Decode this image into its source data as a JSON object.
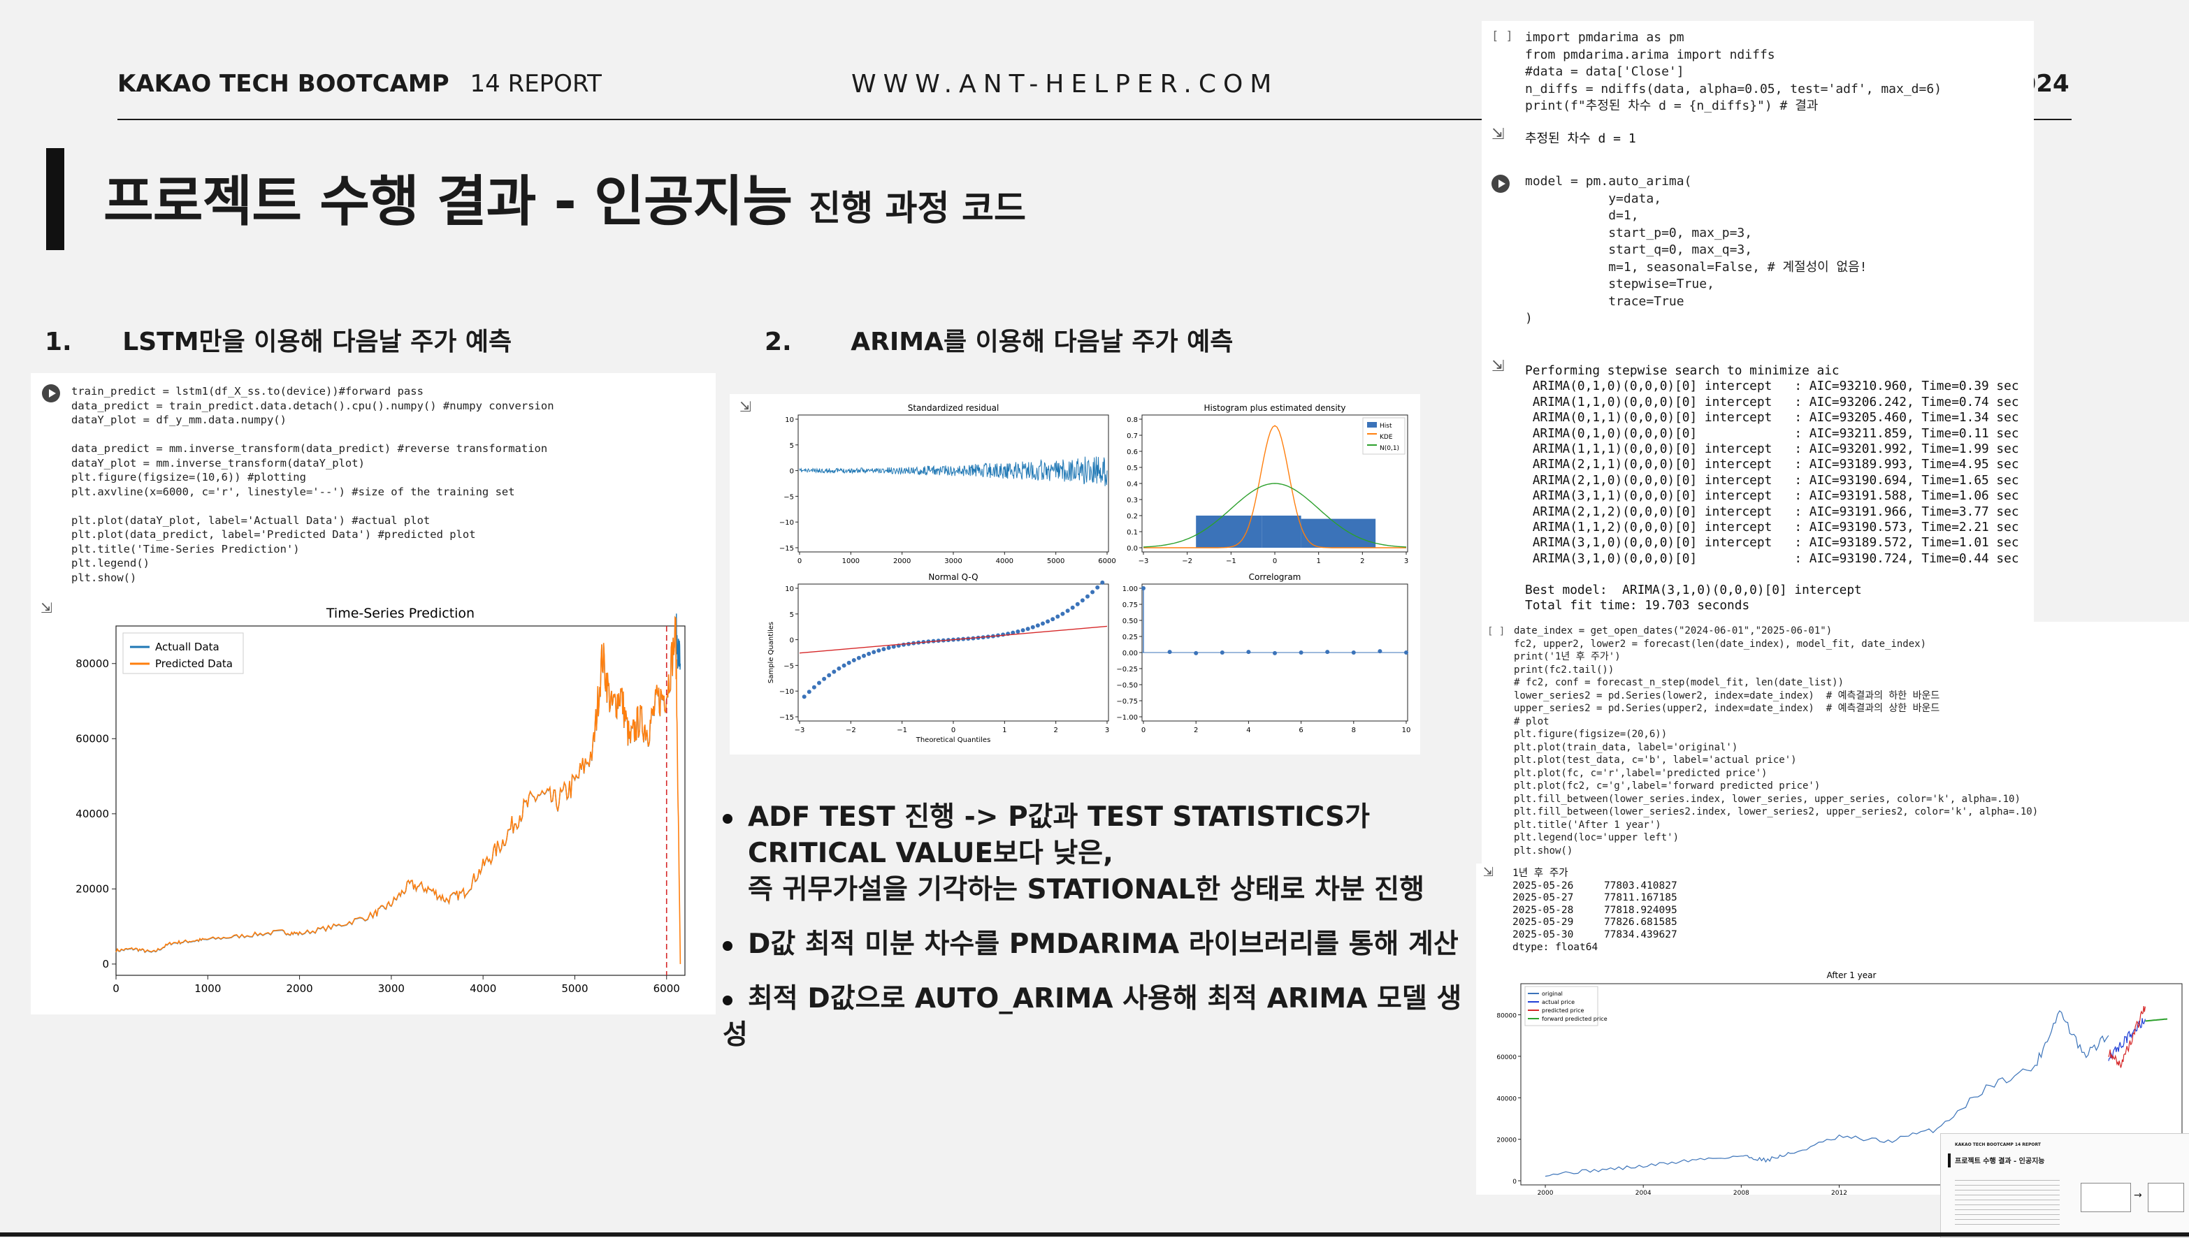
{
  "header": {
    "org": "KAKAO TECH BOOTCAMP",
    "report": "14 REPORT",
    "site": "WWW.ANT-HELPER.COM",
    "year": "2024"
  },
  "title": {
    "main": "프로젝트 수행 결과 - 인공지능",
    "sub": "진행 과정 코드"
  },
  "section1": {
    "num": "1.",
    "label": "LSTM만을 이용해 다음날 주가 예측"
  },
  "section2": {
    "num": "2.",
    "label": "ARIMA를 이용해 다음날 주가 예측"
  },
  "lstm_code": [
    "train_predict = lstm1(df_X_ss.to(device))#forward pass",
    "data_predict = train_predict.data.detach().cpu().numpy() #numpy conversion",
    "dataY_plot = df_y_mm.data.numpy()",
    "",
    "data_predict = mm.inverse_transform(data_predict) #reverse transformation",
    "dataY_plot = mm.inverse_transform(dataY_plot)",
    "plt.figure(figsize=(10,6)) #plotting",
    "plt.axvline(x=6000, c='r', linestyle='--') #size of the training set",
    "",
    "plt.plot(dataY_plot, label='Actuall Data') #actual plot",
    "plt.plot(data_predict, label='Predicted Data') #predicted plot",
    "plt.title('Time-Series Prediction')",
    "plt.legend()",
    "plt.show()"
  ],
  "lstm_chart": {
    "title": "Time-Series Prediction",
    "legend": [
      "Actuall Data",
      "Predicted Data"
    ],
    "yticks": [
      "0",
      "20000",
      "40000",
      "60000",
      "80000"
    ],
    "xticks": [
      "0",
      "1000",
      "2000",
      "3000",
      "4000",
      "5000",
      "6000"
    ],
    "colors": {
      "actual": "#1f77b4",
      "predicted": "#ff7f0e",
      "vline": "#d62728"
    }
  },
  "diag": {
    "p1_title": "Standardized residual",
    "p1_yticks": [
      "10",
      "5",
      "0",
      "−5",
      "−10",
      "−15"
    ],
    "p1_xticks": [
      "0",
      "1000",
      "2000",
      "3000",
      "4000",
      "5000",
      "6000"
    ],
    "p2_title": "Histogram plus estimated density",
    "p2_yticks": [
      "0.8",
      "0.7",
      "0.6",
      "0.5",
      "0.4",
      "0.3",
      "0.2",
      "0.1",
      "0.0"
    ],
    "p2_xticks": [
      "−3",
      "−2",
      "−1",
      "0",
      "1",
      "2",
      "3"
    ],
    "p2_legend": [
      "Hist",
      "KDE",
      "N(0,1)"
    ],
    "p3_title": "Normal Q-Q",
    "p3_ylabel": "Sample Quantiles",
    "p3_xlabel": "Theoretical Quantiles",
    "p3_yticks": [
      "10",
      "5",
      "0",
      "−5",
      "−10",
      "−15"
    ],
    "p3_xticks": [
      "−3",
      "−2",
      "−1",
      "0",
      "1",
      "2",
      "3"
    ],
    "p4_title": "Correlogram",
    "p4_yticks": [
      "1.00",
      "0.75",
      "0.50",
      "0.25",
      "0.00",
      "−0.25",
      "−0.50",
      "−0.75",
      "−1.00"
    ],
    "p4_xticks": [
      "0",
      "2",
      "4",
      "6",
      "8",
      "10"
    ]
  },
  "bullets": [
    [
      "ADF TEST 진행 -> P값과 TEST STATISTICS가",
      "CRITICAL VALUE보다 낮은,",
      "즉 귀무가설을 기각하는 STATIONAL한 상태로 차분 진행"
    ],
    [
      "D값 최적 미분 차수를 PMDARIMA 라이브러리를 통해 계산"
    ],
    [
      "최적 D값으로 AUTO_ARIMA 사용해 최적 ARIMA 모델 생성"
    ]
  ],
  "pm_code": [
    "import pmdarima as pm",
    "from pmdarima.arima import ndiffs",
    "#data = data['Close']",
    "n_diffs = ndiffs(data, alpha=0.05, test='adf', max_d=6)",
    "print(f\"추정된 차수 d = {n_diffs}\") # 결과"
  ],
  "pm_bracket": "[ ]",
  "pm_output": "추정된 차수 d = 1",
  "auto_code": [
    "model = pm.auto_arima(",
    "           y=data,",
    "           d=1,",
    "           start_p=0, max_p=3,",
    "           start_q=0, max_q=3,",
    "           m=1, seasonal=False, # 계절성이 없음!",
    "           stepwise=True,",
    "           trace=True",
    ")"
  ],
  "auto_output": [
    "Performing stepwise search to minimize aic",
    " ARIMA(0,1,0)(0,0,0)[0] intercept   : AIC=93210.960, Time=0.39 sec",
    " ARIMA(1,1,0)(0,0,0)[0] intercept   : AIC=93206.242, Time=0.74 sec",
    " ARIMA(0,1,1)(0,0,0)[0] intercept   : AIC=93205.460, Time=1.34 sec",
    " ARIMA(0,1,0)(0,0,0)[0]             : AIC=93211.859, Time=0.11 sec",
    " ARIMA(1,1,1)(0,0,0)[0] intercept   : AIC=93201.992, Time=1.99 sec",
    " ARIMA(2,1,1)(0,0,0)[0] intercept   : AIC=93189.993, Time=4.95 sec",
    " ARIMA(2,1,0)(0,0,0)[0] intercept   : AIC=93190.694, Time=1.65 sec",
    " ARIMA(3,1,1)(0,0,0)[0] intercept   : AIC=93191.588, Time=1.06 sec",
    " ARIMA(2,1,2)(0,0,0)[0] intercept   : AIC=93191.966, Time=3.77 sec",
    " ARIMA(1,1,2)(0,0,0)[0] intercept   : AIC=93190.573, Time=2.21 sec",
    " ARIMA(3,1,0)(0,0,0)[0] intercept   : AIC=93189.572, Time=1.01 sec",
    " ARIMA(3,1,0)(0,0,0)[0]             : AIC=93190.724, Time=0.44 sec",
    "",
    "Best model:  ARIMA(3,1,0)(0,0,0)[0] intercept",
    "Total fit time: 19.703 seconds"
  ],
  "forecast_code": [
    "date_index = get_open_dates(\"2024-06-01\",\"2025-06-01\")",
    "fc2, upper2, lower2 = forecast(len(date_index), model_fit, date_index)",
    "print('1년 후 주가')",
    "print(fc2.tail())",
    "# fc2, conf = forecast_n_step(model_fit, len(date_list))",
    "lower_series2 = pd.Series(lower2, index=date_index)  # 예측결과의 하한 바운드",
    "upper_series2 = pd.Series(upper2, index=date_index)  # 예측결과의 상한 바운드",
    "# plot",
    "plt.figure(figsize=(20,6))",
    "plt.plot(train_data, label='original')",
    "plt.plot(test_data, c='b', label='actual price')",
    "plt.plot(fc, c='r',label='predicted price')",
    "plt.plot(fc2, c='g',label='forward predicted price')",
    "plt.fill_between(lower_series.index, lower_series, upper_series, color='k', alpha=.10)",
    "plt.fill_between(lower_series2.index, lower_series2, upper_series2, color='k', alpha=.10)",
    "plt.title('After 1 year')",
    "plt.legend(loc='upper left')",
    "plt.show()"
  ],
  "forecast_output": [
    "1년 후 주가",
    "2025-05-26     77803.410827",
    "2025-05-27     77811.167185",
    "2025-05-28     77818.924095",
    "2025-05-29     77826.681585",
    "2025-05-30     77834.439627",
    "dtype: float64"
  ],
  "after_chart": {
    "title": "After 1 year",
    "legend": [
      "original",
      "actual price",
      "predicted price",
      "forward predicted price"
    ],
    "yticks": [
      "0",
      "20000",
      "40000",
      "60000",
      "80000"
    ],
    "xticks": [
      "2000",
      "2004",
      "2008",
      "2012"
    ]
  },
  "thumb": {
    "title": "프로젝트 수행 결과 - 인공지능",
    "header": "KAKAO TECH BOOTCAMP 14 REPORT"
  },
  "chart_data": [
    {
      "type": "line",
      "title": "Time-Series Prediction",
      "xlabel": "",
      "ylabel": "",
      "xlim": [
        0,
        6200
      ],
      "ylim": [
        -3000,
        90000
      ],
      "series": [
        {
          "name": "Actuall Data",
          "x": [
            0,
            200,
            400,
            600,
            800,
            1000,
            1400,
            1800,
            2000,
            2400,
            2800,
            3000,
            3200,
            3400,
            3600,
            3800,
            4000,
            4200,
            4400,
            4600,
            4800,
            5000,
            5200,
            5300,
            5400,
            5500,
            5600,
            5700,
            5800,
            5900,
            6000,
            6100,
            6150
          ],
          "y": [
            3500,
            4000,
            3000,
            5500,
            6000,
            6500,
            7500,
            8500,
            8000,
            10000,
            13000,
            16000,
            21000,
            20000,
            17000,
            19000,
            26000,
            32000,
            40000,
            45000,
            43000,
            48000,
            57000,
            82000,
            68000,
            72000,
            59000,
            65000,
            62000,
            70000,
            72000,
            88000,
            80000
          ]
        },
        {
          "name": "Predicted Data",
          "x": [
            0,
            200,
            400,
            600,
            800,
            1000,
            1400,
            1800,
            2000,
            2400,
            2800,
            3000,
            3200,
            3400,
            3600,
            3800,
            4000,
            4200,
            4400,
            4600,
            4800,
            5000,
            5200,
            5300,
            5400,
            5500,
            5600,
            5700,
            5800,
            5900,
            6000,
            6100,
            6150
          ],
          "y": [
            3600,
            4100,
            3100,
            5600,
            6100,
            6600,
            7600,
            8600,
            8100,
            10100,
            13100,
            16100,
            21100,
            20100,
            17100,
            19100,
            26100,
            32100,
            40100,
            45100,
            43100,
            48100,
            57100,
            82100,
            68100,
            72100,
            59100,
            65100,
            62100,
            70100,
            72100,
            88100,
            0
          ]
        }
      ],
      "annotations": [
        {
          "type": "vline",
          "x": 6000,
          "style": "dashed",
          "color": "r"
        }
      ]
    },
    {
      "type": "line",
      "title": "After 1 year",
      "xlim": [
        1999,
        2026
      ],
      "ylim": [
        -2000,
        95000
      ],
      "series": [
        {
          "name": "original",
          "x": [
            2000,
            2002,
            2004,
            2006,
            2008,
            2009,
            2010,
            2012,
            2014,
            2016,
            2018,
            2020,
            2021,
            2022,
            2023
          ],
          "y": [
            3000,
            5000,
            7000,
            10000,
            12000,
            10000,
            13000,
            21000,
            19000,
            25000,
            45000,
            55000,
            82000,
            60000,
            70000
          ]
        },
        {
          "name": "actual price",
          "x": [
            2023,
            2023.5,
            2024,
            2024.5
          ],
          "y": [
            60000,
            65000,
            72000,
            78000
          ]
        },
        {
          "name": "predicted price",
          "x": [
            2023,
            2023.5,
            2024,
            2024.5
          ],
          "y": [
            62000,
            56000,
            70000,
            84000
          ]
        },
        {
          "name": "forward predicted price",
          "x": [
            2024.5,
            2025.4
          ],
          "y": [
            77000,
            78000
          ]
        }
      ]
    }
  ]
}
